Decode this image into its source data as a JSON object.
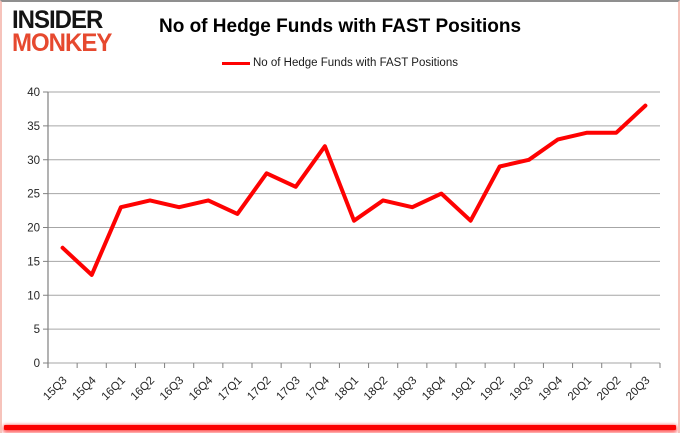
{
  "header": {
    "logo_line1": "INSIDER",
    "logo_line2": "MONKEY",
    "title": "No of Hedge Funds with FAST Positions"
  },
  "legend": {
    "label": "No of Hedge Funds with FAST Positions"
  },
  "colors": {
    "series_line": "#fe0202",
    "gridline": "#a6a6a6",
    "axis": "#808080",
    "tick_text": "#262626",
    "logo_black": "#141414",
    "logo_red": "#e6492f",
    "bottom_bar": "#fb0101"
  },
  "chart_data": {
    "type": "line",
    "title": "No of Hedge Funds with FAST Positions",
    "categories": [
      "15Q3",
      "15Q4",
      "16Q1",
      "16Q2",
      "16Q3",
      "16Q4",
      "17Q1",
      "17Q2",
      "17Q3",
      "17Q4",
      "18Q1",
      "18Q2",
      "18Q3",
      "18Q4",
      "19Q1",
      "19Q2",
      "19Q3",
      "19Q4",
      "20Q1",
      "20Q2",
      "20Q3"
    ],
    "series": [
      {
        "name": "No of Hedge Funds with FAST Positions",
        "values": [
          17,
          13,
          23,
          24,
          23,
          24,
          22,
          28,
          26,
          32,
          21,
          24,
          23,
          25,
          21,
          29,
          30,
          33,
          34,
          34,
          38
        ]
      }
    ],
    "xlabel": "",
    "ylabel": "",
    "ylim": [
      0,
      40
    ],
    "ytick_step": 5,
    "grid": true,
    "legend_position": "top-center"
  }
}
